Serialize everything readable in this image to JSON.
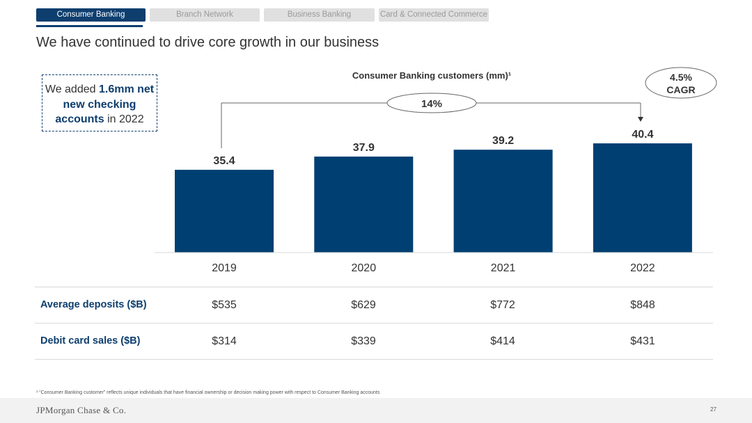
{
  "tabs": [
    {
      "label": "Consumer Banking",
      "active": true
    },
    {
      "label": "Branch Network",
      "active": false
    },
    {
      "label": "Business Banking",
      "active": false
    },
    {
      "label": "Card & Connected Commerce",
      "active": false
    }
  ],
  "page_title": "We have continued to drive core growth in our business",
  "callout": {
    "prefix": "We added ",
    "highlight": "1.6mm net new checking accounts",
    "suffix": " in 2022"
  },
  "chart_data": {
    "type": "bar",
    "title": "Consumer Banking customers (mm)¹",
    "categories": [
      "2019",
      "2020",
      "2021",
      "2022"
    ],
    "values": [
      35.4,
      37.9,
      39.2,
      40.4
    ],
    "value_labels": [
      "35.4",
      "37.9",
      "39.2",
      "40.4"
    ],
    "growth_annotation": "14%",
    "cagr_annotation": [
      "4.5%",
      "CAGR"
    ],
    "grid": false,
    "legend": "none"
  },
  "metrics": [
    {
      "label": "Average deposits ($B)",
      "values": [
        "$535",
        "$629",
        "$772",
        "$848"
      ]
    },
    {
      "label": "Debit card sales ($B)",
      "values": [
        "$314",
        "$339",
        "$414",
        "$431"
      ]
    }
  ],
  "footnote": "¹ “Consumer Banking customer” reflects unique individuals that have financial ownership or decision making power with respect to Consumer Banking accounts",
  "footer": {
    "logo": "JPMorgan Chase & Co.",
    "page_number": "27"
  },
  "colors": {
    "brand": "#0d3e6e",
    "bar": "#003f72",
    "tab_inactive": "#e0e0e0",
    "footer_bg": "#f2f2f2"
  }
}
